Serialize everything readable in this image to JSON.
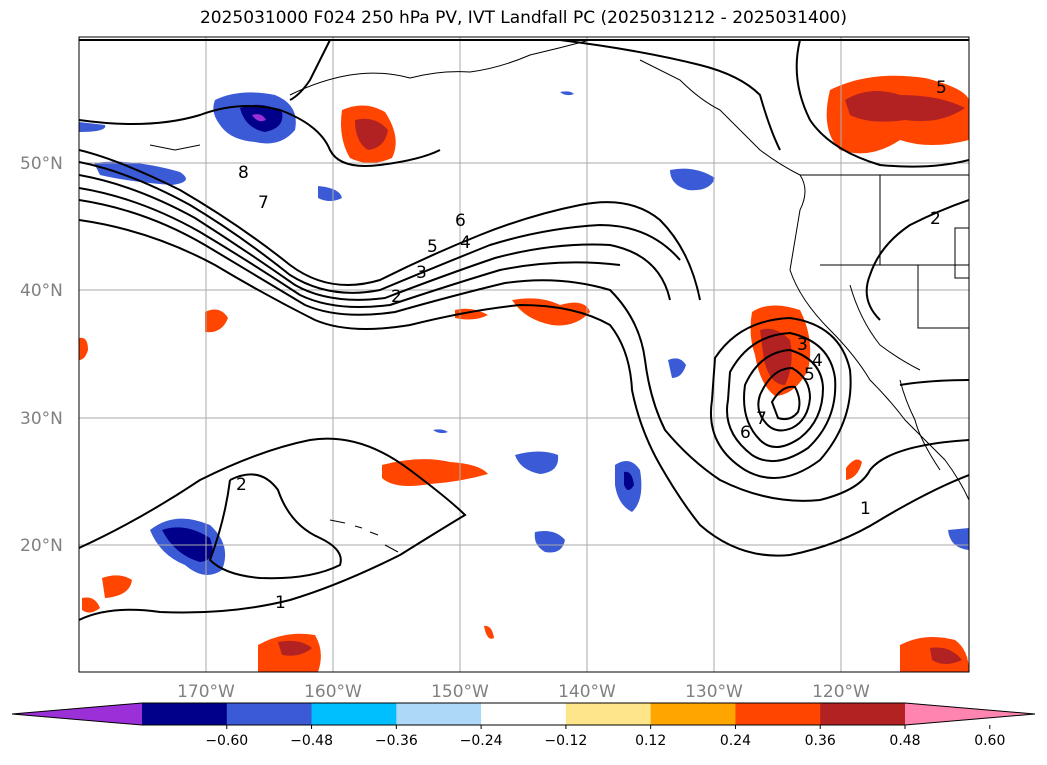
{
  "title": "2025031000 F024 250 hPa PV, IVT Landfall PC (2025031212 - 2025031400)",
  "map": {
    "lat_labels": [
      "50°N",
      "40°N",
      "30°N",
      "20°N"
    ],
    "lon_labels": [
      "170°W",
      "160°W",
      "150°W",
      "140°W",
      "130°W",
      "120°W"
    ],
    "contour_labels": [
      "8",
      "7",
      "6",
      "5",
      "4",
      "3",
      "2",
      "2",
      "1",
      "1",
      "7",
      "6",
      "5",
      "4",
      "3",
      "2",
      "5"
    ]
  },
  "colorbar": {
    "ticks": [
      "−0.60",
      "−0.48",
      "−0.36",
      "−0.24",
      "−0.12",
      "0.12",
      "0.24",
      "0.36",
      "0.48",
      "0.60"
    ],
    "colors": [
      "#9b30d9",
      "#00008b",
      "#3b5bd6",
      "#00bfff",
      "#add8f7",
      "#ffffff",
      "#ffe58a",
      "#ffa500",
      "#ff4500",
      "#b22222",
      "#ff85b0"
    ]
  },
  "chart_data": {
    "type": "map",
    "field_shaded": "250 hPa PV principal component",
    "field_contoured": "IVT landfall PC",
    "color_levels": [
      -0.6,
      -0.48,
      -0.36,
      -0.24,
      -0.12,
      0.12,
      0.24,
      0.36,
      0.48,
      0.6
    ],
    "contour_levels": [
      1,
      2,
      3,
      4,
      5,
      6,
      7,
      8
    ],
    "lon_range": [
      -180,
      -110
    ],
    "lat_range": [
      10,
      60
    ]
  }
}
